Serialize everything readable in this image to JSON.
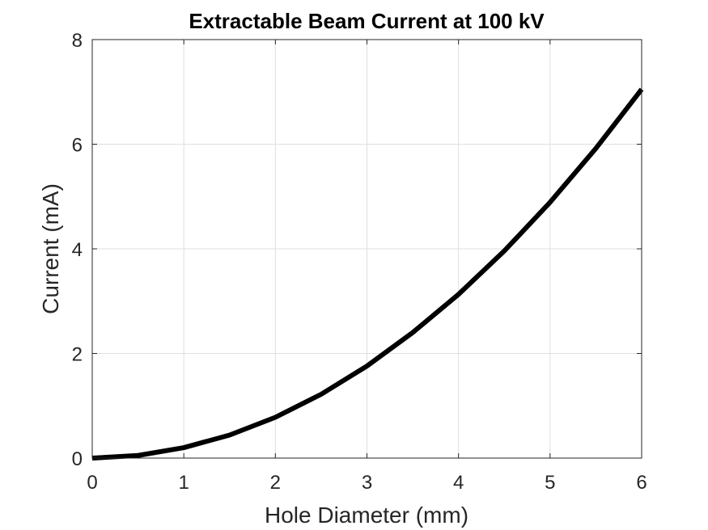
{
  "chart_data": {
    "type": "line",
    "title": "Extractable Beam Current at 100  kV",
    "xlabel": "Hole Diameter (mm)",
    "ylabel": "Current (mA)",
    "xlim": [
      0,
      6
    ],
    "ylim": [
      0,
      8
    ],
    "xticks": [
      "0",
      "1",
      "2",
      "3",
      "4",
      "5",
      "6"
    ],
    "yticks": [
      "0",
      "2",
      "4",
      "6",
      "8"
    ],
    "grid": true,
    "series": [
      {
        "color": "#000000",
        "x": [
          0,
          0.5,
          1,
          1.5,
          2,
          2.5,
          3,
          3.5,
          4,
          4.5,
          5,
          5.5,
          6
        ],
        "y": [
          0,
          0.05,
          0.2,
          0.44,
          0.78,
          1.22,
          1.76,
          2.4,
          3.13,
          3.96,
          4.89,
          5.92,
          7.05
        ]
      }
    ]
  }
}
